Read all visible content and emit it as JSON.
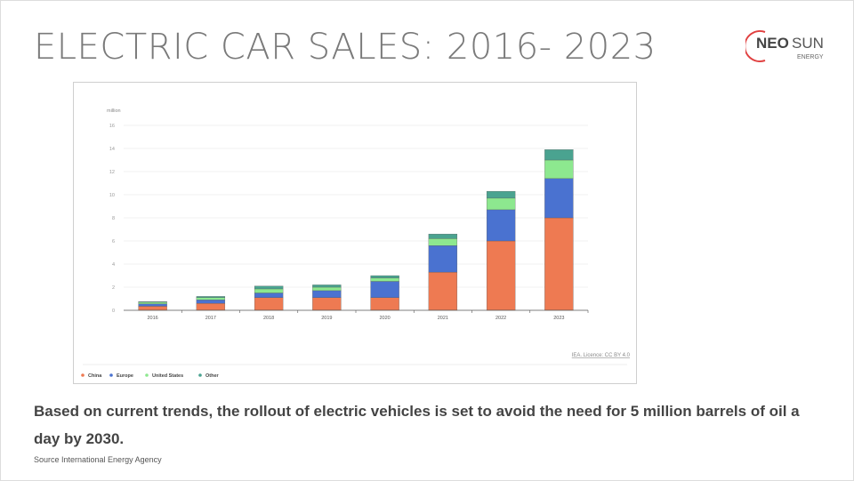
{
  "slide": {
    "title": "ELECTRIC CAR SALES: 2016- 2023",
    "body": "Based on current trends, the rollout of electric vehicles is set to avoid the need for 5 million barrels of oil a day by 2030.",
    "source": "Source International Energy Agency"
  },
  "logo": {
    "text_neo": "NEO",
    "text_sun": "SUN",
    "text_energy": "ENERGY",
    "accent": "#e04040"
  },
  "chart_data": {
    "type": "bar",
    "stacked": true,
    "ylabel": "million",
    "ylim": [
      0,
      16
    ],
    "yticks": [
      0,
      2,
      4,
      6,
      8,
      10,
      12,
      14,
      16
    ],
    "grid": true,
    "legend_placement": "bottom-left",
    "attribution": "IEA. Licence: CC BY 4.0",
    "categories": [
      "2016",
      "2017",
      "2018",
      "2019",
      "2020",
      "2021",
      "2022",
      "2023"
    ],
    "series": [
      {
        "name": "China",
        "color": "#ee7a52",
        "values": [
          0.35,
          0.6,
          1.1,
          1.1,
          1.1,
          3.3,
          6.0,
          8.0
        ]
      },
      {
        "name": "Europe",
        "color": "#4a72d0",
        "values": [
          0.2,
          0.3,
          0.4,
          0.6,
          1.4,
          2.3,
          2.7,
          3.4
        ]
      },
      {
        "name": "United States",
        "color": "#8de88f",
        "values": [
          0.15,
          0.2,
          0.35,
          0.3,
          0.3,
          0.6,
          1.0,
          1.6
        ]
      },
      {
        "name": "Other",
        "color": "#4aa390",
        "values": [
          0.05,
          0.1,
          0.25,
          0.2,
          0.2,
          0.4,
          0.6,
          0.9
        ]
      }
    ]
  }
}
